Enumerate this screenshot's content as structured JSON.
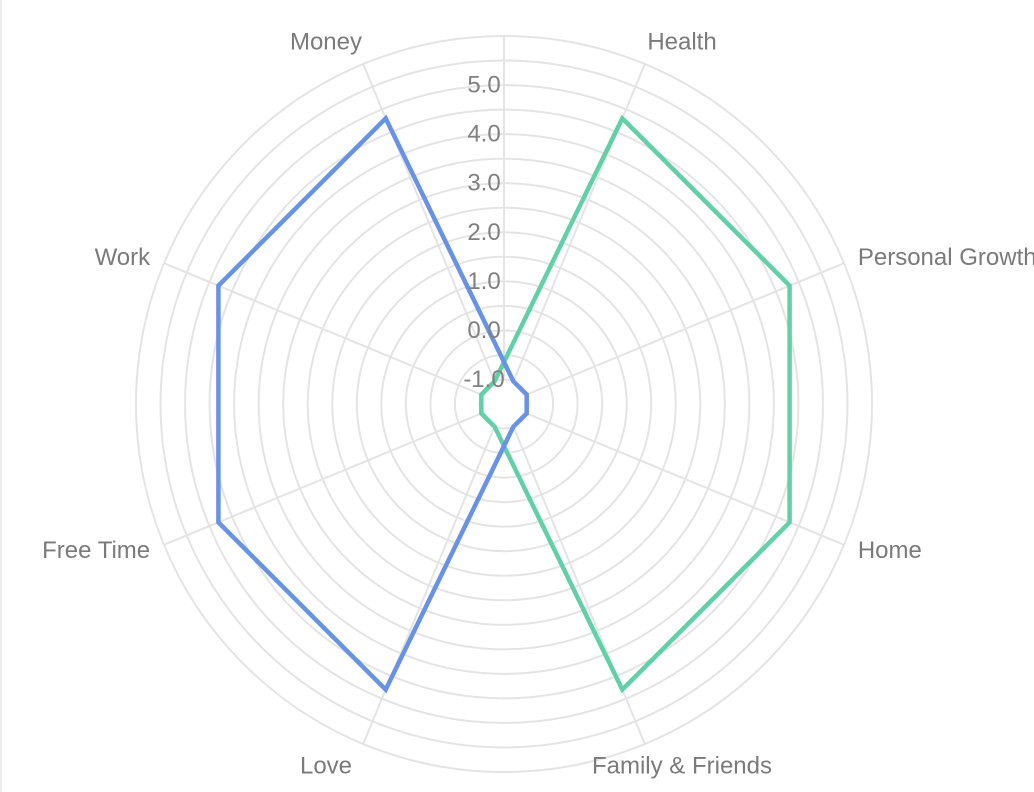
{
  "chart_data": {
    "type": "radar",
    "axes": [
      "Health",
      "Personal Growth",
      "Home",
      "Family & Friends",
      "Love",
      "Free Time",
      "Work",
      "Money"
    ],
    "r_ticks": [
      "-1.0",
      "0.0",
      "1.0",
      "2.0",
      "3.0",
      "4.0",
      "5.0"
    ],
    "r_range": [
      -1.5,
      6
    ],
    "grid": true,
    "series": [
      {
        "color": "#62D0A6",
        "values": [
          4.8,
          4.8,
          4.8,
          4.8,
          -1.0,
          -1.0,
          -1.0,
          -1.0
        ]
      },
      {
        "color": "#6892E5",
        "values": [
          -1.0,
          -1.0,
          -1.0,
          -1.0,
          4.8,
          4.8,
          4.8,
          4.8
        ]
      }
    ]
  }
}
